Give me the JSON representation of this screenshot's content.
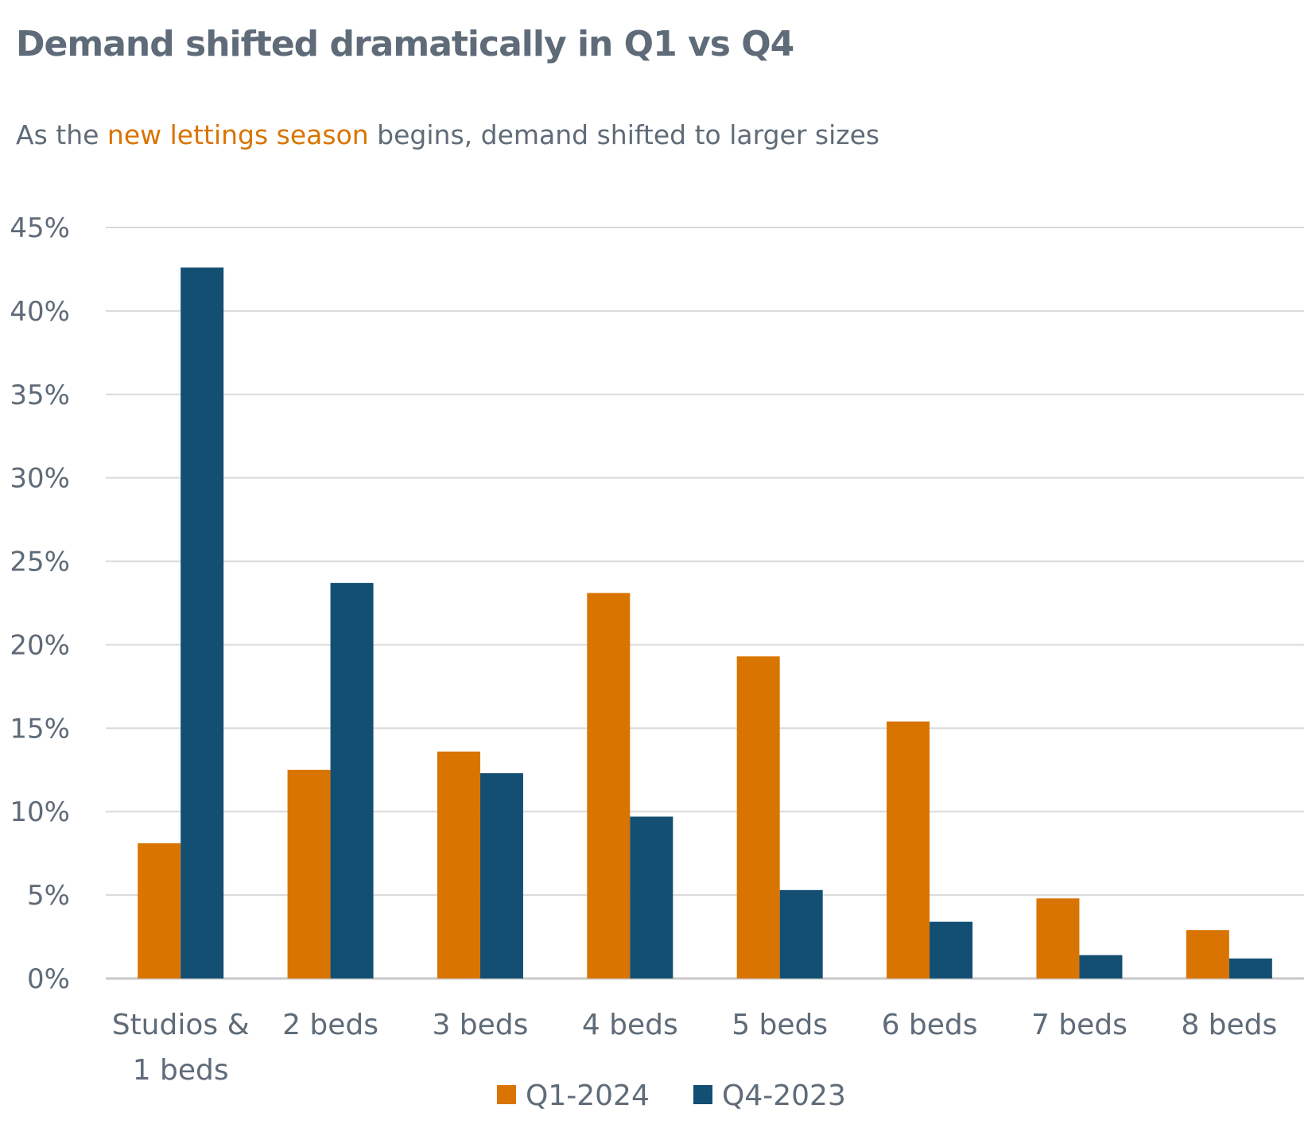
{
  "header": {
    "title": "Demand shifted dramatically in Q1 vs Q4",
    "subtitle_pre": "As the ",
    "subtitle_highlight": "new lettings season",
    "subtitle_post": " begins, demand shifted to larger sizes"
  },
  "colors": {
    "Q1-2024": "#d97400",
    "Q4-2023": "#134f73",
    "grid": "#d9d9d9",
    "text": "#5f6b78",
    "highlight": "#d97400"
  },
  "chart_data": {
    "type": "bar",
    "title": "Demand shifted dramatically in Q1 vs Q4",
    "xlabel": "",
    "ylabel": "",
    "categories": [
      [
        "Studios &",
        "1 beds"
      ],
      [
        "2 beds"
      ],
      [
        "3 beds"
      ],
      [
        "4 beds"
      ],
      [
        "5 beds"
      ],
      [
        "6 beds"
      ],
      [
        "7 beds"
      ],
      [
        "8 beds"
      ]
    ],
    "series": [
      {
        "name": "Q1-2024",
        "values": [
          8.1,
          12.5,
          13.6,
          23.1,
          19.3,
          15.4,
          4.8,
          2.9
        ]
      },
      {
        "name": "Q4-2023",
        "values": [
          42.6,
          23.7,
          12.3,
          9.7,
          5.3,
          3.4,
          1.4,
          1.2
        ]
      }
    ],
    "ylim": [
      0,
      45
    ],
    "yticks": [
      0,
      5,
      10,
      15,
      20,
      25,
      30,
      35,
      40,
      45
    ],
    "ytick_format": "%",
    "grid": true,
    "legend_position": "bottom"
  }
}
